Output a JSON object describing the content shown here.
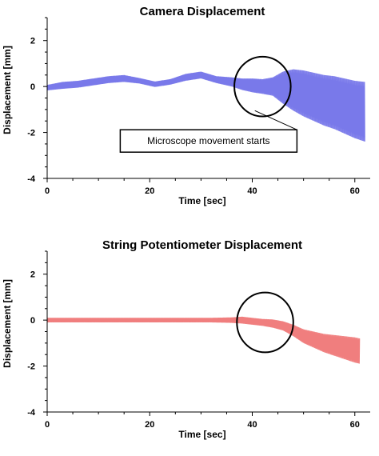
{
  "chart_data": [
    {
      "type": "line",
      "title": "Camera Displacement",
      "xlabel": "Time [sec]",
      "ylabel": "Displacement [mm]",
      "xlim": [
        0,
        63
      ],
      "ylim": [
        -4,
        3
      ],
      "xticks": [
        "0",
        "20",
        "40",
        "60"
      ],
      "yticks": [
        "2",
        "0",
        "-2",
        "-4"
      ],
      "grid": false,
      "legend": "none",
      "series": [
        {
          "color": "#6a6ae8",
          "x": [
            0,
            3,
            6,
            9,
            12,
            15,
            18,
            21,
            24,
            27,
            30,
            33,
            36,
            38,
            40,
            42,
            44,
            46,
            48,
            50,
            52,
            54,
            56,
            58,
            60,
            62
          ],
          "y": [
            -0.05,
            0.05,
            0.1,
            0.2,
            0.3,
            0.35,
            0.25,
            0.1,
            0.2,
            0.4,
            0.5,
            0.3,
            0.2,
            0.1,
            0.05,
            0.0,
            0.0,
            -0.05,
            -0.15,
            -0.3,
            -0.45,
            -0.6,
            -0.7,
            -0.85,
            -1.0,
            -1.1
          ],
          "amplitude": [
            0.12,
            0.15,
            0.15,
            0.15,
            0.15,
            0.15,
            0.12,
            0.12,
            0.12,
            0.15,
            0.15,
            0.15,
            0.2,
            0.25,
            0.3,
            0.32,
            0.4,
            0.7,
            0.9,
            1.0,
            1.05,
            1.1,
            1.15,
            1.2,
            1.25,
            1.3
          ]
        }
      ],
      "annotations": [
        {
          "type": "circle",
          "x": 42,
          "y": 0,
          "rx": 5.5,
          "ry": 1.3
        },
        {
          "type": "callout",
          "text": "Microscope movement starts",
          "point_x": 40.5,
          "point_y": -1.05,
          "box_x": 30,
          "box_y": -2.3
        }
      ]
    },
    {
      "type": "line",
      "title": "String Potentiometer Displacement",
      "xlabel": "Time [sec]",
      "ylabel": "Displacement [mm]",
      "xlim": [
        0,
        63
      ],
      "ylim": [
        -4,
        3
      ],
      "xticks": [
        "0",
        "20",
        "40",
        "60"
      ],
      "yticks": [
        "2",
        "0",
        "-2",
        "-4"
      ],
      "grid": false,
      "legend": "none",
      "series": [
        {
          "color": "#ee7070",
          "x": [
            0,
            4,
            8,
            12,
            16,
            20,
            24,
            28,
            32,
            36,
            38,
            40,
            42,
            44,
            46,
            48,
            50,
            52,
            54,
            56,
            58,
            60,
            61
          ],
          "y": [
            0.0,
            0.0,
            0.0,
            0.0,
            0.0,
            0.0,
            0.0,
            0.0,
            0.0,
            0.0,
            0.0,
            -0.05,
            -0.1,
            -0.15,
            -0.25,
            -0.45,
            -0.7,
            -0.85,
            -1.0,
            -1.1,
            -1.2,
            -1.3,
            -1.35
          ],
          "amplitude": [
            0.1,
            0.1,
            0.1,
            0.1,
            0.1,
            0.1,
            0.1,
            0.1,
            0.1,
            0.12,
            0.15,
            0.15,
            0.15,
            0.18,
            0.2,
            0.25,
            0.3,
            0.35,
            0.4,
            0.45,
            0.5,
            0.55,
            0.55
          ]
        }
      ],
      "annotations": [
        {
          "type": "circle",
          "x": 42.5,
          "y": -0.1,
          "rx": 5.5,
          "ry": 1.3
        }
      ]
    }
  ]
}
